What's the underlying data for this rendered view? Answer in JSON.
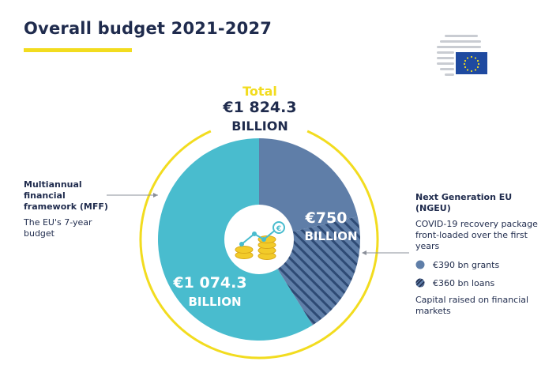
{
  "title": "Overall budget 2021-2027",
  "total": {
    "label": "Total",
    "value": "€1 824.3",
    "unit": "BILLION"
  },
  "colors": {
    "mff": "#49bcce",
    "ngeu": "#5f7ea8",
    "ngeu_loans_hatch": "#2e4a74",
    "ring": "#f2dc1f",
    "accent": "#f2dc1f",
    "text": "#1f2b4d",
    "coin": "#f2cb2a"
  },
  "chart_data": {
    "type": "pie",
    "title": "Overall budget 2021-2027",
    "total": 1824.3,
    "slices": [
      {
        "name": "Next Generation EU (NGEU)",
        "value": 750,
        "label_value": "€750",
        "label_unit": "BILLION"
      },
      {
        "name": "Multiannual financial framework (MFF)",
        "value": 1074.3,
        "label_value": "€1 074.3",
        "label_unit": "BILLION"
      }
    ],
    "ngeu_split": [
      {
        "name": "€390 bn grants",
        "value": 390,
        "style": "solid"
      },
      {
        "name": "€360 bn loans",
        "value": 360,
        "style": "hatched"
      }
    ]
  },
  "mff": {
    "title": "Multiannual financial framework (MFF)",
    "subtitle": "The EU's 7-year budget"
  },
  "ngeu": {
    "title": "Next Generation EU (NGEU)",
    "subtitle": "COVID-19 recovery package front-loaded over the first years",
    "legend": [
      "€390 bn grants",
      "€360 bn loans"
    ],
    "footer": "Capital raised on financial markets"
  },
  "icons": {
    "center": "coins-growth-icon",
    "logo": "eu-council-logo-icon"
  }
}
